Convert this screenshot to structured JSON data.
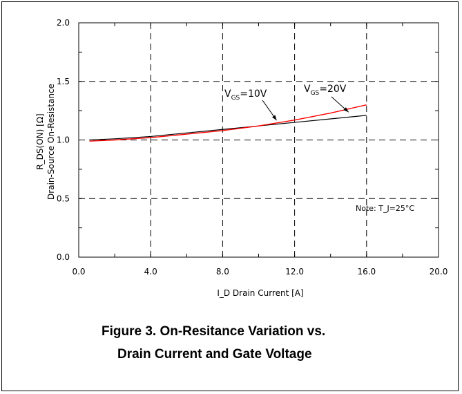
{
  "chart_data": {
    "type": "line",
    "title": "",
    "xlabel": "I_D Drain Current [A]",
    "ylabel_line1": "R_DS(ON) [Ω]",
    "ylabel_line2": "Drain-Source On-Resistance",
    "xlim": [
      0,
      20
    ],
    "ylim": [
      0,
      2
    ],
    "xticks": [
      "0.0",
      "4.0",
      "8.0",
      "12.0",
      "16.0",
      "20.0"
    ],
    "yticks": [
      "0.0",
      "0.5",
      "1.0",
      "1.5",
      "2.0"
    ],
    "grid": true,
    "series": [
      {
        "name": "VGS=10V",
        "color": "#000000",
        "x": [
          0.6,
          2,
          4,
          6,
          8,
          10,
          12,
          14,
          16
        ],
        "y": [
          1.0,
          1.01,
          1.03,
          1.06,
          1.09,
          1.12,
          1.15,
          1.18,
          1.21
        ]
      },
      {
        "name": "VGS=20V",
        "color": "#ff0000",
        "x": [
          0.6,
          2,
          4,
          6,
          8,
          10,
          12,
          14,
          16
        ],
        "y": [
          0.99,
          1.0,
          1.02,
          1.05,
          1.08,
          1.12,
          1.17,
          1.23,
          1.3
        ]
      }
    ],
    "annotations": [
      {
        "label": "V_GS=10V",
        "sub": "GS",
        "main": "V",
        "rest": "=10V",
        "arrow_to": [
          11,
          1.15
        ]
      },
      {
        "label": "V_GS=20V",
        "sub": "GS",
        "main": "V",
        "rest": "=20V",
        "arrow_to": [
          15,
          1.22
        ]
      }
    ],
    "note": "Note: T_J=25°C"
  },
  "caption": {
    "line1": "Figure 3. On-Resitance Variation vs.",
    "line2": "Drain Current and Gate Voltage"
  }
}
